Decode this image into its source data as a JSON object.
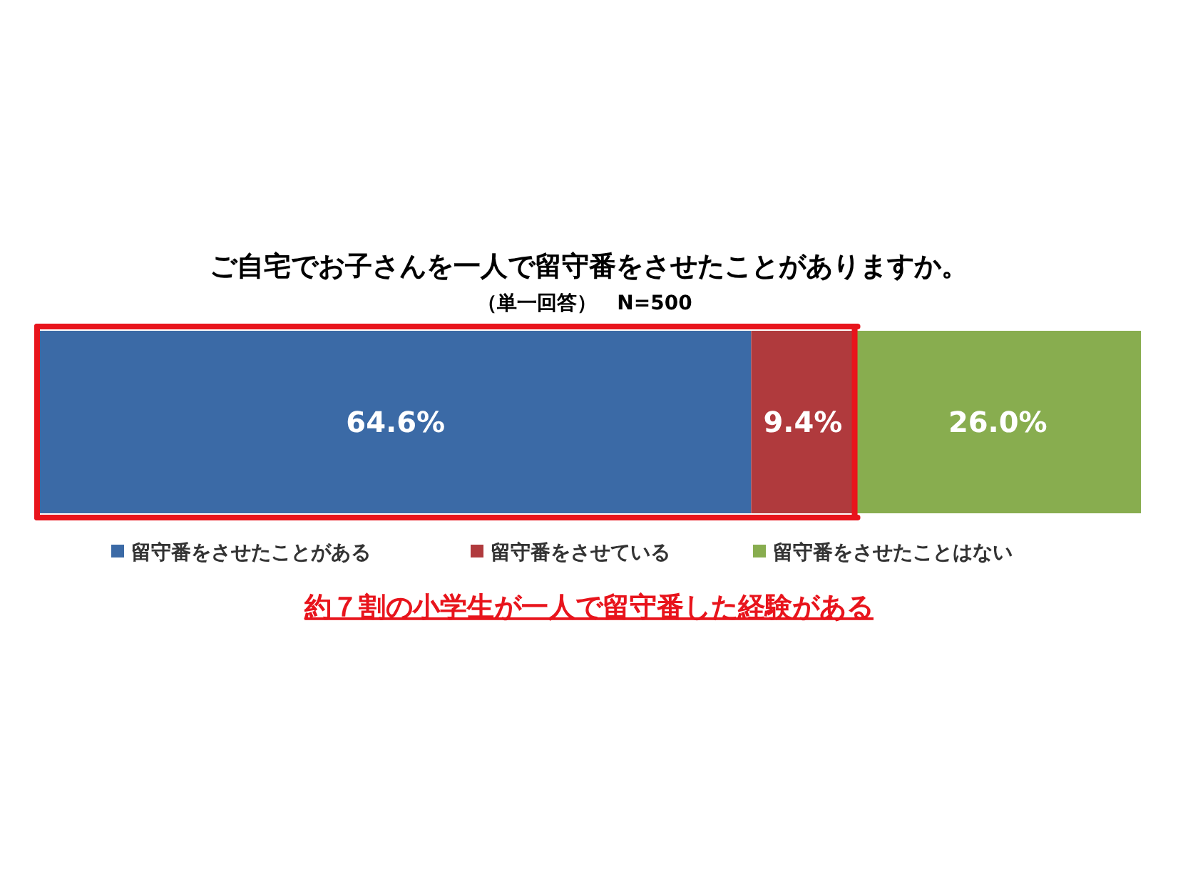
{
  "chart_data": {
    "type": "bar",
    "orientation": "horizontal",
    "stacked": true,
    "title": "ご自宅でお子さんを一人で留守番をさせたことがありますか。",
    "subtitle": "（単一回答）　N=500",
    "categories": [
      null
    ],
    "series": [
      {
        "name": "留守番をさせたことがある",
        "color": "#3b6aa6",
        "values": [
          64.6
        ],
        "value_labels": [
          "64.6%"
        ]
      },
      {
        "name": "留守番をさせている",
        "color": "#b03a3d",
        "values": [
          9.4
        ],
        "value_labels": [
          "9.4%"
        ]
      },
      {
        "name": "留守番をさせたことはない",
        "color": "#88ad4f",
        "values": [
          26.0
        ],
        "value_labels": [
          "26.0%"
        ]
      }
    ],
    "xlim": [
      0,
      100
    ],
    "legend": "bottom",
    "ref_lines": [
      {
        "axis": "x",
        "value": 74,
        "color": "#e8141c"
      }
    ],
    "annotations": [
      "約７割の小学生が一人で留守番した経験がある"
    ]
  }
}
